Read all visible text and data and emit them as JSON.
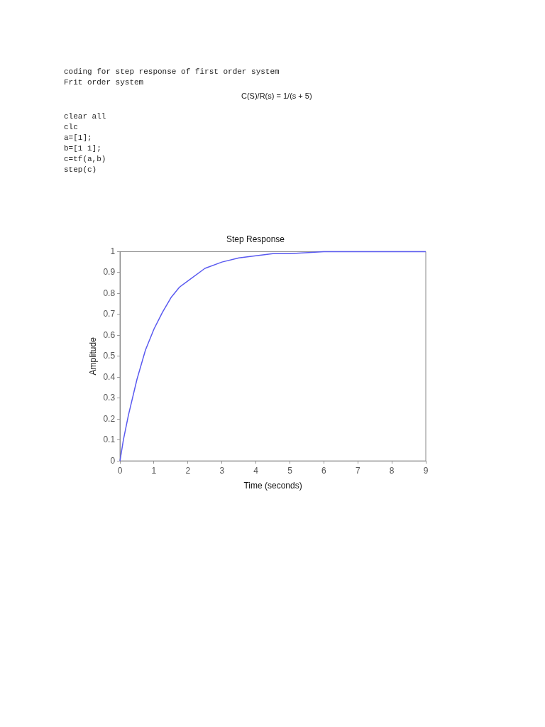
{
  "chart_data": {
    "type": "line",
    "title": "Step Response",
    "xlabel": "Time (seconds)",
    "ylabel": "Amplitude",
    "annotations": [
      "coding for step response of first order system",
      "Frit order system",
      "C(S)/R(s) = 1/(s + 5)",
      "clear all",
      "clc",
      "a=[1];",
      "b=[1 1];",
      "c=tf(a,b)",
      "step(c)"
    ],
    "x": [
      0,
      0.1,
      0.25,
      0.5,
      0.75,
      1,
      1.25,
      1.5,
      1.75,
      2,
      2.5,
      3,
      3.5,
      4,
      4.5,
      5,
      6,
      7,
      8,
      9
    ],
    "series": [
      {
        "color": "#5a5af0",
        "values": [
          0,
          0.1,
          0.22,
          0.39,
          0.53,
          0.63,
          0.71,
          0.78,
          0.83,
          0.86,
          0.92,
          0.95,
          0.97,
          0.98,
          0.99,
          0.99,
          1,
          1,
          1,
          1
        ]
      }
    ],
    "xlim": [
      0,
      9
    ],
    "xticks": [
      0,
      1,
      2,
      3,
      4,
      5,
      6,
      7,
      8,
      9
    ],
    "ylim": [
      0,
      1
    ],
    "yticks": [
      0,
      0.1,
      0.2,
      0.3,
      0.4,
      0.5,
      0.6,
      0.7,
      0.8,
      0.9,
      1
    ],
    "grid": false,
    "legend": false,
    "marker": "none",
    "line_style": "solid"
  }
}
